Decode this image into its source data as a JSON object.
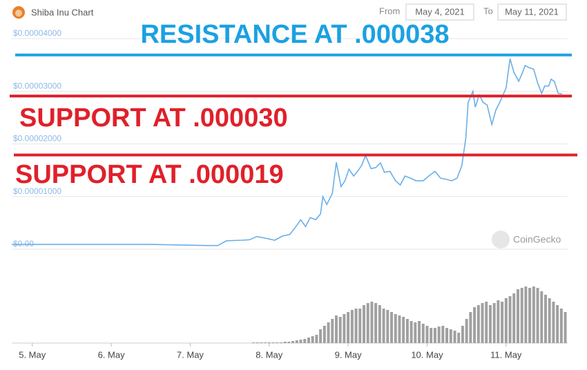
{
  "header": {
    "title": "Shiba Inu Chart",
    "from_label": "From",
    "from_date": "May 4, 2021",
    "to_label": "To",
    "to_date": "May 11, 2021",
    "watermark": "CoinGecko"
  },
  "chart_data": [
    {
      "type": "line",
      "color": "#6aaee8",
      "x": [
        4.74,
        5.5,
        6.5,
        7.22,
        7.35,
        7.46,
        7.65,
        7.75,
        7.84,
        7.95,
        8.07,
        8.17,
        8.26,
        8.33,
        8.4,
        8.46,
        8.52,
        8.59,
        8.65,
        8.68,
        8.73,
        8.8,
        8.85,
        8.91,
        8.96,
        9.01,
        9.07,
        9.12,
        9.17,
        9.22,
        9.29,
        9.35,
        9.41,
        9.46,
        9.53,
        9.6,
        9.66,
        9.72,
        9.79,
        9.86,
        9.95,
        10.02,
        10.1,
        10.17,
        10.24,
        10.31,
        10.38,
        10.44,
        10.49,
        10.52,
        10.58,
        10.61,
        10.66,
        10.71,
        10.76,
        10.82,
        10.87,
        10.92,
        10.97,
        11.0,
        11.05,
        11.1,
        11.16,
        11.21,
        11.24,
        11.29,
        11.35,
        11.4,
        11.45,
        11.49,
        11.54,
        11.57,
        11.61,
        11.66,
        11.71
      ],
      "values": [
        9e-07,
        9e-07,
        9e-07,
        7e-07,
        7e-07,
        1.6e-06,
        1.7e-06,
        1.8e-06,
        2.4e-06,
        2.1e-06,
        1.7e-06,
        2.5e-06,
        2.8e-06,
        4.1e-06,
        5.6e-06,
        4.3e-06,
        6e-06,
        5.6e-06,
        6.7e-06,
        1e-05,
        8.5e-06,
        1.06e-05,
        1.65e-05,
        1.19e-05,
        1.3e-05,
        1.52e-05,
        1.39e-05,
        1.48e-05,
        1.59e-05,
        1.78e-05,
        1.53e-05,
        1.55e-05,
        1.64e-05,
        1.46e-05,
        1.48e-05,
        1.3e-05,
        1.22e-05,
        1.39e-05,
        1.35e-05,
        1.3e-05,
        1.3e-05,
        1.39e-05,
        1.48e-05,
        1.35e-05,
        1.33e-05,
        1.3e-05,
        1.35e-05,
        1.59e-05,
        2.11e-05,
        2.79e-05,
        3e-05,
        2.7e-05,
        2.93e-05,
        2.79e-05,
        2.74e-05,
        2.37e-05,
        2.64e-05,
        2.79e-05,
        2.96e-05,
        3.06e-05,
        3.62e-05,
        3.36e-05,
        3.19e-05,
        3.36e-05,
        3.49e-05,
        3.45e-05,
        3.42e-05,
        3.16e-05,
        2.96e-05,
        3.1e-05,
        3.1e-05,
        3.23e-05,
        3.19e-05,
        2.96e-05,
        2.95e-05
      ],
      "xlim": [
        4.74,
        11.78
      ],
      "ylim": [
        0,
        4e-05
      ],
      "yticks": [
        {
          "value": 0,
          "label": "$0.00"
        },
        {
          "value": 1e-05,
          "label": "$0.00001000"
        },
        {
          "value": 2e-05,
          "label": "$0.00002000"
        },
        {
          "value": 3e-05,
          "label": "$0.00003000"
        },
        {
          "value": 4e-05,
          "label": "$0.00004000"
        }
      ],
      "grid": true,
      "annotations": [
        {
          "text": "RESISTANCE AT .000038",
          "level": 3.69e-05,
          "color": "#1ba1e2"
        },
        {
          "text": "SUPPORT AT .000030",
          "level": 2.91e-05,
          "color": "#e0202a"
        },
        {
          "text": "SUPPORT AT .000019",
          "level": 1.79e-05,
          "color": "#e0202a"
        }
      ]
    },
    {
      "type": "bar",
      "color": "#a0a0a0",
      "x": [
        7.8,
        7.85,
        7.9,
        7.95,
        8.0,
        8.05,
        8.1,
        8.15,
        8.2,
        8.25,
        8.3,
        8.35,
        8.4,
        8.45,
        8.5,
        8.55,
        8.6,
        8.65,
        8.7,
        8.75,
        8.8,
        8.85,
        8.9,
        8.95,
        9.0,
        9.05,
        9.1,
        9.15,
        9.2,
        9.25,
        9.3,
        9.35,
        9.4,
        9.45,
        9.5,
        9.55,
        9.6,
        9.65,
        9.7,
        9.75,
        9.8,
        9.85,
        9.9,
        9.95,
        10.0,
        10.05,
        10.1,
        10.15,
        10.2,
        10.25,
        10.3,
        10.35,
        10.4,
        10.45,
        10.5,
        10.55,
        10.6,
        10.65,
        10.7,
        10.75,
        10.8,
        10.85,
        10.9,
        10.95,
        11.0,
        11.05,
        11.1,
        11.15,
        11.2,
        11.25,
        11.3,
        11.35,
        11.4,
        11.45,
        11.5,
        11.55,
        11.6,
        11.65,
        11.7,
        11.75
      ],
      "values": [
        1,
        1,
        1,
        1,
        1,
        1,
        1,
        1,
        2,
        2,
        3,
        4,
        5,
        6,
        8,
        10,
        12,
        20,
        25,
        30,
        35,
        40,
        38,
        42,
        45,
        48,
        50,
        50,
        55,
        58,
        60,
        58,
        55,
        50,
        48,
        45,
        42,
        40,
        38,
        35,
        32,
        30,
        32,
        28,
        25,
        22,
        22,
        24,
        25,
        22,
        20,
        18,
        15,
        25,
        35,
        45,
        52,
        55,
        58,
        60,
        55,
        58,
        62,
        60,
        65,
        68,
        72,
        78,
        80,
        82,
        80,
        82,
        80,
        75,
        70,
        65,
        60,
        55,
        50,
        45
      ],
      "xlim": [
        4.74,
        11.78
      ],
      "ylim": [
        0,
        100
      ],
      "xticks": [
        {
          "value": 5,
          "label": "5. May"
        },
        {
          "value": 6,
          "label": "6. May"
        },
        {
          "value": 7,
          "label": "7. May"
        },
        {
          "value": 8,
          "label": "8. May"
        },
        {
          "value": 9,
          "label": "9. May"
        },
        {
          "value": 10,
          "label": "10. May"
        },
        {
          "value": 11,
          "label": "11. May"
        }
      ]
    }
  ]
}
